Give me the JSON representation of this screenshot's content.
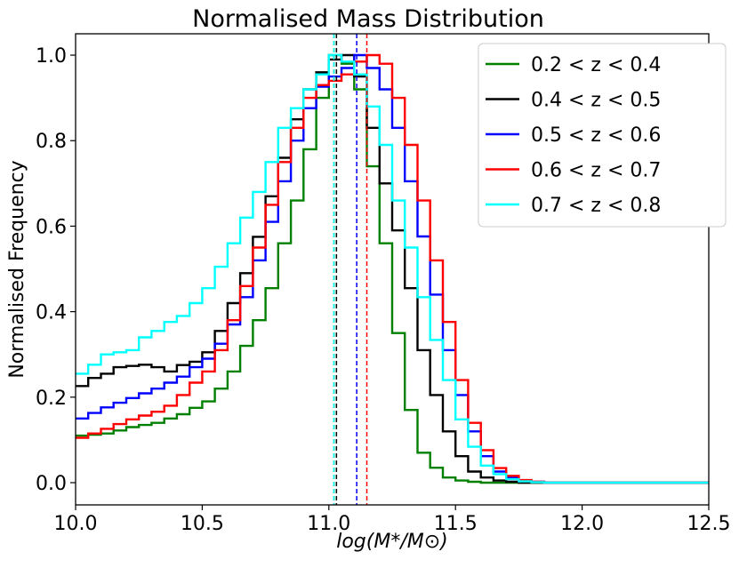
{
  "chart_data": {
    "type": "line",
    "style": "step-histogram",
    "title": "Normalised Mass Distribution",
    "xlabel": "log(M*/M⊙)",
    "ylabel": "Normalised Frequency",
    "xlim": [
      10.0,
      12.5
    ],
    "ylim": [
      -0.052,
      1.05
    ],
    "xticks": [
      "10.0",
      "10.5",
      "11.0",
      "11.5",
      "12.0",
      "12.5"
    ],
    "yticks": [
      "0.0",
      "0.2",
      "0.4",
      "0.6",
      "0.8",
      "1.0"
    ],
    "grid": false,
    "legend_position": "top-right",
    "bin_start": 10.0,
    "bin_width": 0.05,
    "series": [
      {
        "name": "0.2 < z < 0.4",
        "color": "#008000",
        "median": 11.02,
        "values": [
          0.11,
          0.112,
          0.115,
          0.122,
          0.13,
          0.135,
          0.14,
          0.15,
          0.16,
          0.175,
          0.19,
          0.22,
          0.26,
          0.32,
          0.38,
          0.455,
          0.56,
          0.66,
          0.78,
          0.9,
          1.0,
          0.98,
          0.92,
          0.74,
          0.56,
          0.35,
          0.17,
          0.07,
          0.035,
          0.012,
          0.005,
          0.002,
          0,
          0,
          0,
          0,
          0,
          0,
          0,
          0,
          0,
          0,
          0,
          0,
          0,
          0,
          0,
          0,
          0,
          0
        ]
      },
      {
        "name": "0.4 < z < 0.5",
        "color": "#000000",
        "median": 11.03,
        "values": [
          0.226,
          0.245,
          0.255,
          0.27,
          0.273,
          0.276,
          0.27,
          0.26,
          0.275,
          0.283,
          0.305,
          0.355,
          0.42,
          0.49,
          0.575,
          0.67,
          0.76,
          0.85,
          0.92,
          0.96,
          0.99,
          1.0,
          0.95,
          0.83,
          0.7,
          0.59,
          0.455,
          0.31,
          0.205,
          0.12,
          0.062,
          0.026,
          0.012,
          0.005,
          0.002,
          0,
          0,
          0,
          0,
          0,
          0,
          0,
          0,
          0,
          0,
          0,
          0,
          0,
          0,
          0
        ]
      },
      {
        "name": "0.5 < z < 0.6",
        "color": "#0000ff",
        "median": 11.11,
        "values": [
          0.15,
          0.163,
          0.176,
          0.187,
          0.198,
          0.209,
          0.22,
          0.234,
          0.248,
          0.27,
          0.29,
          0.325,
          0.37,
          0.434,
          0.52,
          0.61,
          0.705,
          0.8,
          0.876,
          0.926,
          0.95,
          0.97,
          1.0,
          0.97,
          0.92,
          0.83,
          0.705,
          0.576,
          0.44,
          0.31,
          0.205,
          0.12,
          0.062,
          0.026,
          0.012,
          0.005,
          0.002,
          0,
          0,
          0,
          0,
          0,
          0,
          0,
          0,
          0,
          0,
          0,
          0,
          0
        ]
      },
      {
        "name": "0.6 < z < 0.7",
        "color": "#ff0000",
        "median": 11.15,
        "values": [
          0.105,
          0.115,
          0.126,
          0.137,
          0.148,
          0.157,
          0.166,
          0.18,
          0.205,
          0.234,
          0.26,
          0.31,
          0.38,
          0.46,
          0.55,
          0.65,
          0.75,
          0.83,
          0.9,
          0.93,
          0.94,
          0.955,
          0.985,
          1.0,
          0.98,
          0.9,
          0.79,
          0.66,
          0.52,
          0.376,
          0.24,
          0.14,
          0.076,
          0.034,
          0.016,
          0.006,
          0.002,
          0,
          0,
          0,
          0,
          0,
          0,
          0,
          0,
          0,
          0,
          0,
          0,
          0
        ]
      },
      {
        "name": "0.7 < z < 0.8",
        "color": "#00ffff",
        "median": 11.02,
        "values": [
          0.255,
          0.276,
          0.3,
          0.305,
          0.31,
          0.34,
          0.355,
          0.376,
          0.39,
          0.42,
          0.455,
          0.505,
          0.56,
          0.62,
          0.68,
          0.75,
          0.83,
          0.876,
          0.92,
          0.955,
          1.0,
          0.985,
          0.955,
          0.88,
          0.79,
          0.66,
          0.55,
          0.434,
          0.334,
          0.24,
          0.148,
          0.084,
          0.04,
          0.02,
          0.008,
          0.003,
          0.001,
          0,
          0,
          0,
          0,
          0,
          0,
          0,
          0,
          0,
          0,
          0,
          0,
          0
        ]
      }
    ]
  }
}
